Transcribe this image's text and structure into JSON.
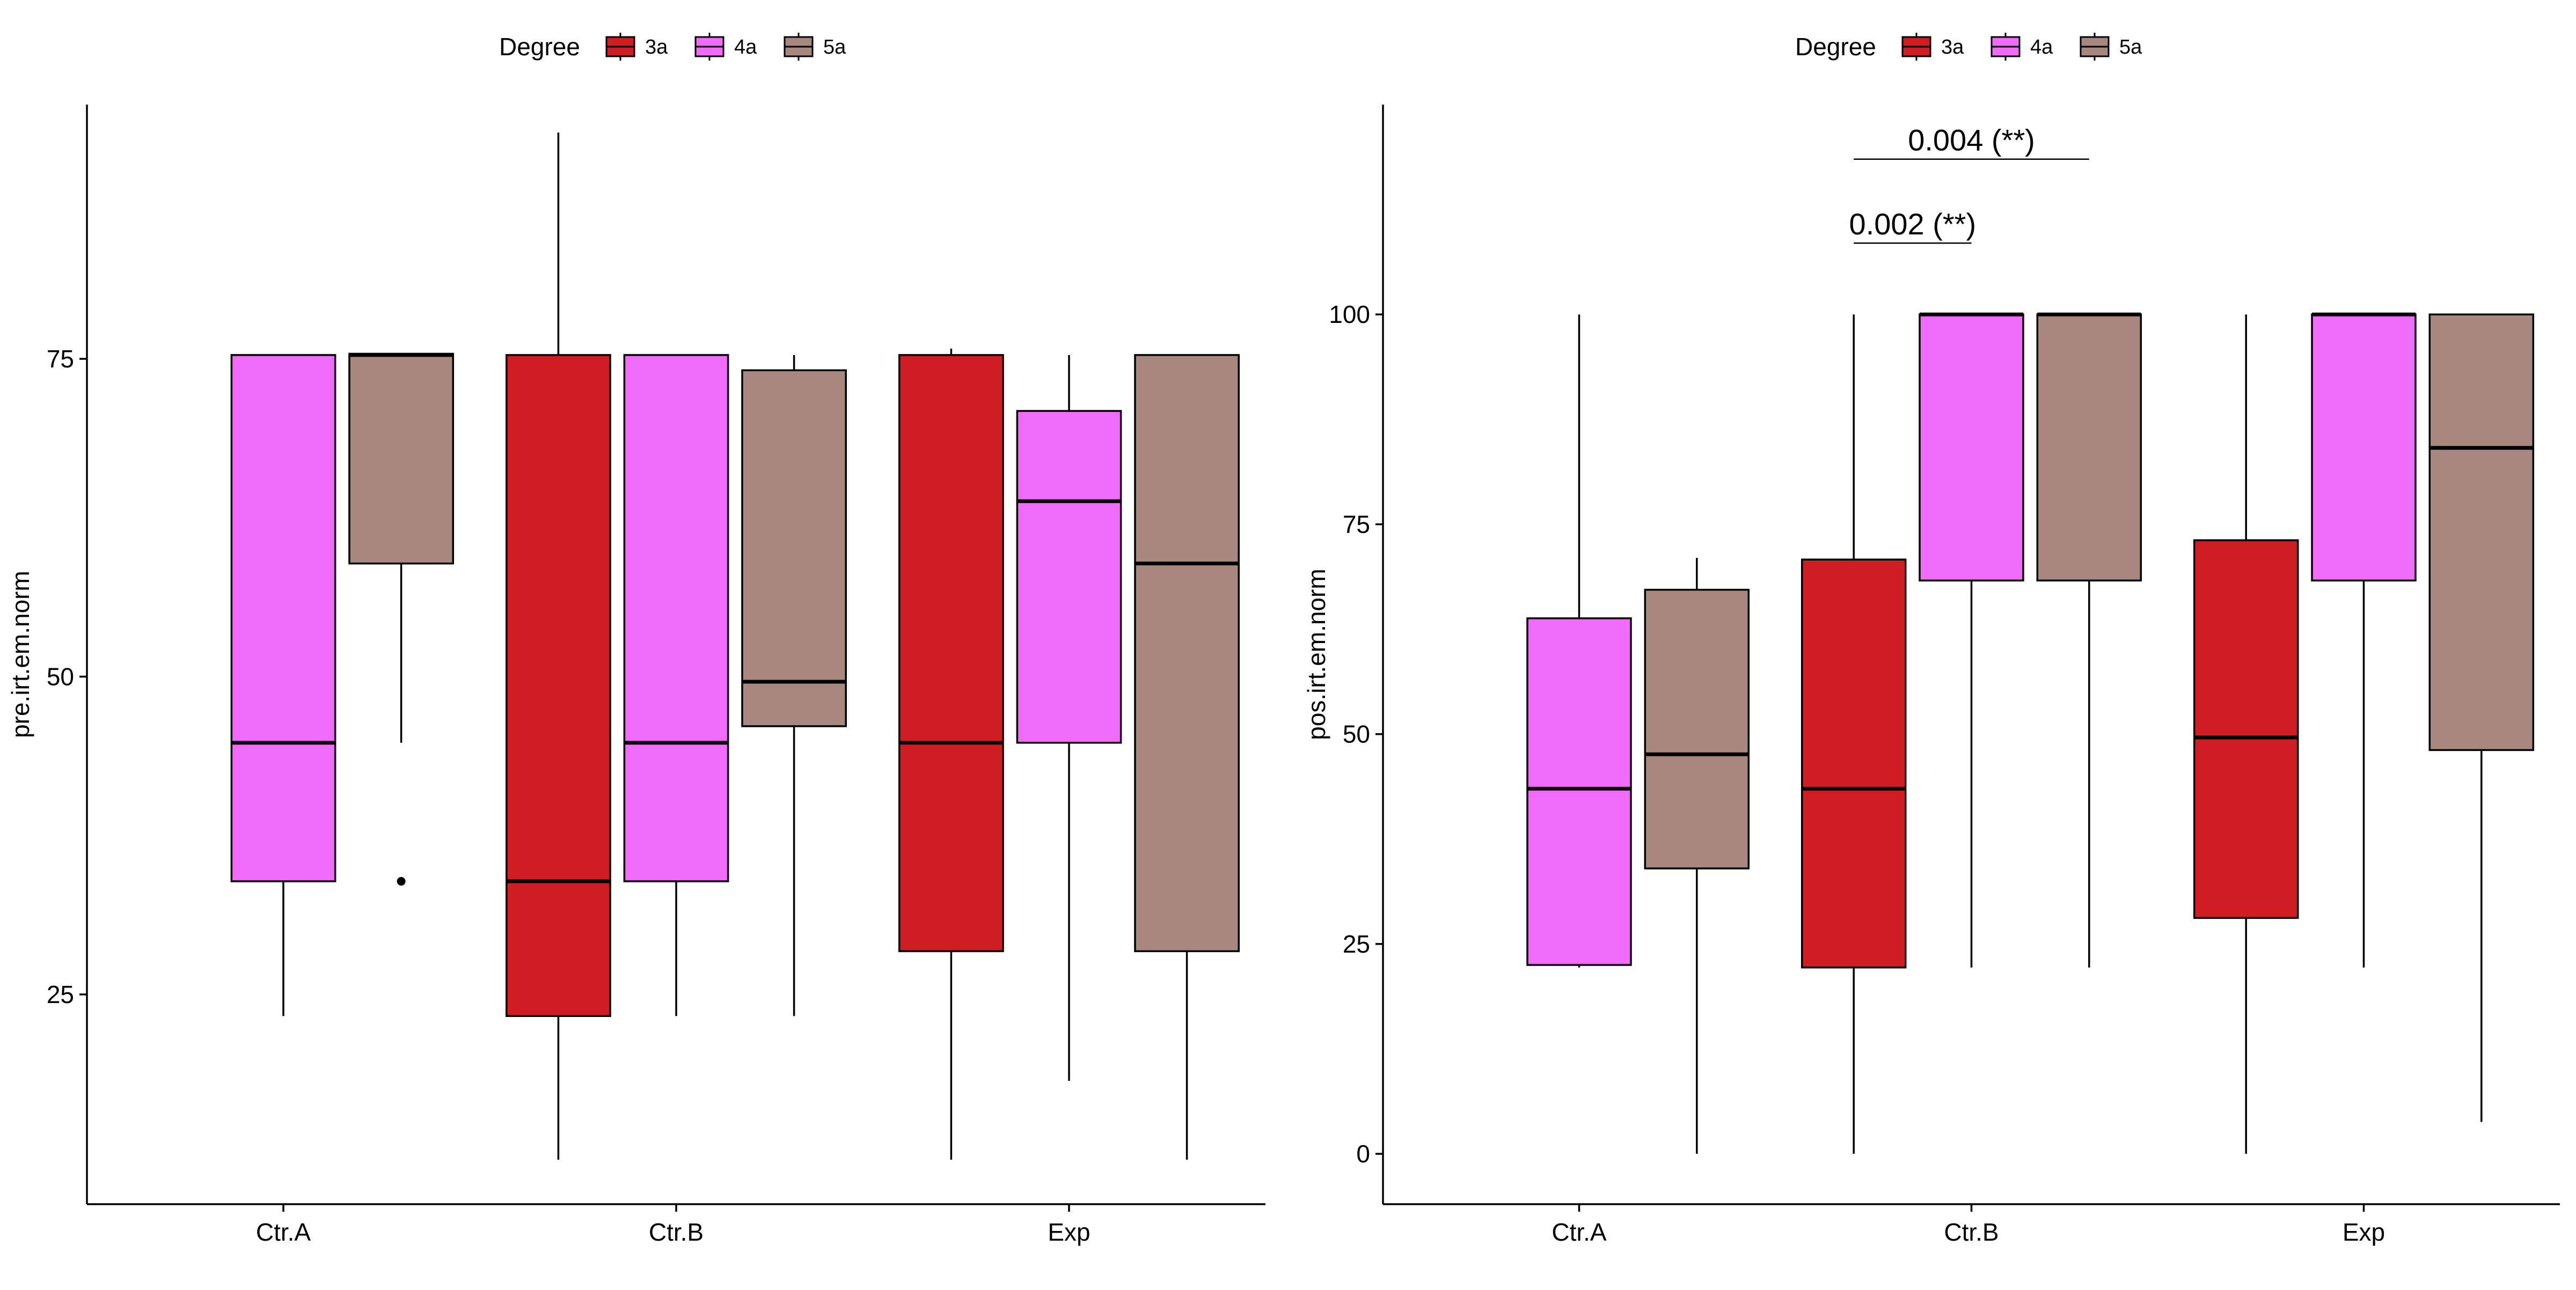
{
  "chart_data": [
    {
      "type": "boxplot",
      "xlabel": "",
      "ylabel": "pre.irt.em.norm",
      "ylim": [
        8.5,
        95
      ],
      "yticks": [
        25,
        50,
        75
      ],
      "categories": [
        "Ctr.A",
        "Ctr.B",
        "Exp"
      ],
      "grid": false,
      "legend": {
        "title": "Degree",
        "position": "top",
        "entries": [
          {
            "label": "3a",
            "color": "#d01c23"
          },
          {
            "label": "4a",
            "color": "#f06bfa"
          },
          {
            "label": "5a",
            "color": "#a8877f"
          }
        ]
      },
      "series": [
        {
          "name": "3a",
          "color": "#d01c23",
          "boxes": [
            null,
            {
              "category": "Ctr.B",
              "min": 12,
              "q1": 23.3,
              "median": 33.9,
              "q3": 75.3,
              "max": 92.8,
              "outliers": []
            },
            {
              "category": "Exp",
              "min": 12,
              "q1": 28.4,
              "median": 44.8,
              "q3": 75.3,
              "max": 75.8,
              "outliers": []
            }
          ]
        },
        {
          "name": "4a",
          "color": "#f06bfa",
          "boxes": [
            {
              "category": "Ctr.A",
              "min": 23.3,
              "q1": 33.9,
              "median": 44.8,
              "q3": 75.3,
              "max": 75.3,
              "outliers": []
            },
            {
              "category": "Ctr.B",
              "min": 23.3,
              "q1": 33.9,
              "median": 44.8,
              "q3": 75.3,
              "max": 75.3,
              "outliers": []
            },
            {
              "category": "Exp",
              "min": 18.2,
              "q1": 44.8,
              "median": 63.8,
              "q3": 70.9,
              "max": 75.3,
              "outliers": []
            }
          ]
        },
        {
          "name": "5a",
          "color": "#a8877f",
          "boxes": [
            {
              "category": "Ctr.A",
              "min": 44.8,
              "q1": 58.9,
              "median": 75.3,
              "q3": 75.4,
              "max": 75.4,
              "outliers": [
                33.9
              ]
            },
            {
              "category": "Ctr.B",
              "min": 23.3,
              "q1": 46.1,
              "median": 49.6,
              "q3": 74.1,
              "max": 75.3,
              "outliers": []
            },
            {
              "category": "Exp",
              "min": 12,
              "q1": 28.4,
              "median": 58.9,
              "q3": 75.3,
              "max": 75.3,
              "outliers": []
            }
          ]
        }
      ],
      "annotations": []
    },
    {
      "type": "boxplot",
      "xlabel": "",
      "ylabel": "pos.irt.em.norm",
      "ylim": [
        -6,
        125
      ],
      "yticks": [
        0,
        25,
        50,
        75,
        100
      ],
      "categories": [
        "Ctr.A",
        "Ctr.B",
        "Exp"
      ],
      "grid": false,
      "legend": {
        "title": "Degree",
        "position": "top",
        "entries": [
          {
            "label": "3a",
            "color": "#d01c23"
          },
          {
            "label": "4a",
            "color": "#f06bfa"
          },
          {
            "label": "5a",
            "color": "#a8877f"
          }
        ]
      },
      "series": [
        {
          "name": "3a",
          "color": "#d01c23",
          "boxes": [
            null,
            {
              "category": "Ctr.B",
              "min": 0,
              "q1": 22.2,
              "median": 43.5,
              "q3": 70.8,
              "max": 100,
              "outliers": []
            },
            {
              "category": "Exp",
              "min": 0,
              "q1": 28.1,
              "median": 49.6,
              "q3": 73.1,
              "max": 100,
              "outliers": []
            }
          ]
        },
        {
          "name": "4a",
          "color": "#f06bfa",
          "boxes": [
            {
              "category": "Ctr.A",
              "min": 22.2,
              "q1": 22.5,
              "median": 43.5,
              "q3": 63.8,
              "max": 100,
              "outliers": []
            },
            {
              "category": "Ctr.B",
              "min": 22.2,
              "q1": 68.3,
              "median": 100,
              "q3": 100,
              "max": 100,
              "outliers": []
            },
            {
              "category": "Exp",
              "min": 22.2,
              "q1": 68.3,
              "median": 100,
              "q3": 100,
              "max": 100,
              "outliers": []
            }
          ]
        },
        {
          "name": "5a",
          "color": "#a8877f",
          "boxes": [
            {
              "category": "Ctr.A",
              "min": 0,
              "q1": 34.0,
              "median": 47.6,
              "q3": 67.2,
              "max": 71.0,
              "outliers": []
            },
            {
              "category": "Ctr.B",
              "min": 22.2,
              "q1": 68.3,
              "median": 100,
              "q3": 100,
              "max": 100,
              "outliers": []
            },
            {
              "category": "Exp",
              "min": 3.8,
              "q1": 48.1,
              "median": 84.1,
              "q3": 100,
              "max": 100,
              "outliers": []
            }
          ]
        }
      ],
      "annotations": [
        {
          "label": "0.002 (**)",
          "from": {
            "category": "Ctr.B",
            "series": "3a"
          },
          "to": {
            "category": "Ctr.B",
            "series": "4a"
          },
          "y": 108.5
        },
        {
          "label": "0.004 (**)",
          "from": {
            "category": "Ctr.B",
            "series": "3a"
          },
          "to": {
            "category": "Ctr.B",
            "series": "5a"
          },
          "y": 118.5
        }
      ]
    }
  ]
}
